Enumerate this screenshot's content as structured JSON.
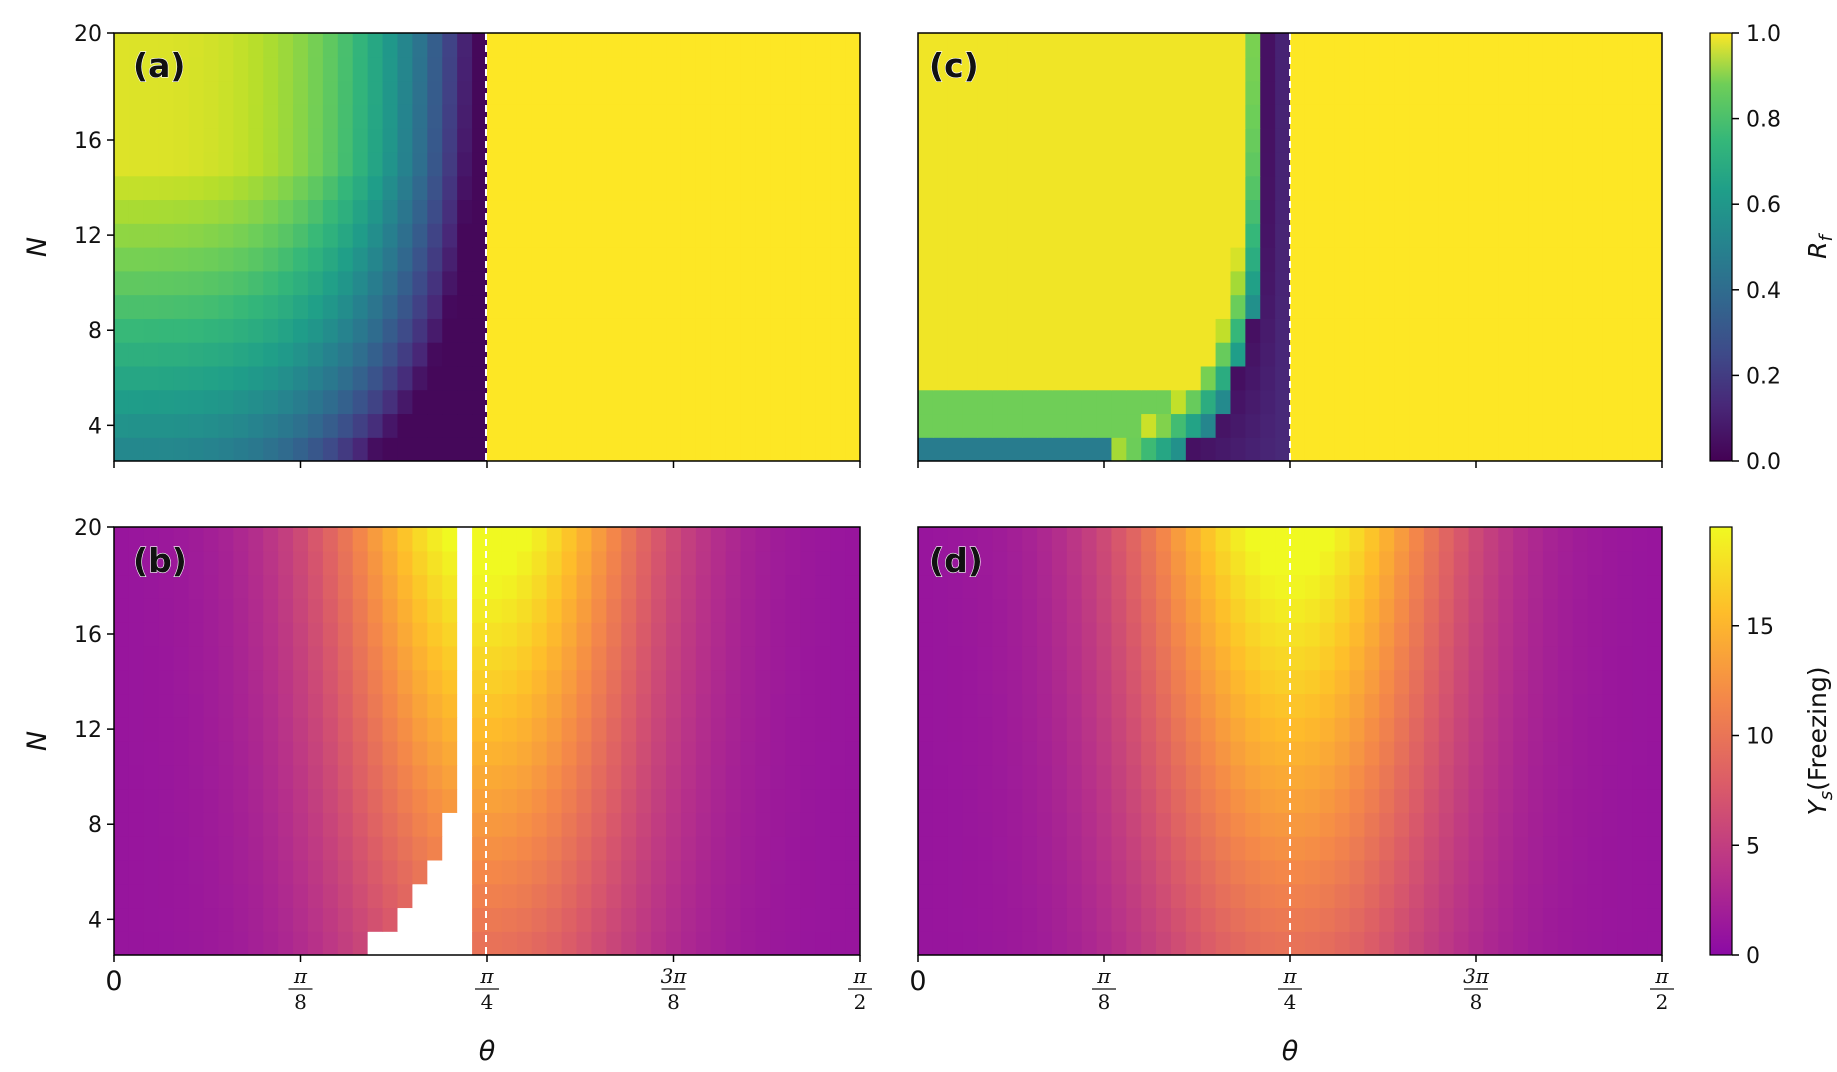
{
  "chart_data": [
    {
      "id": "a",
      "type": "heatmap",
      "panel_label": "(a)",
      "colormap": "viridis",
      "quantity": "R_f",
      "xlabel": "",
      "ylabel": "N",
      "xlim": [
        0,
        1.5708
      ],
      "ylim": [
        3,
        20
      ],
      "y_ticks": [
        4,
        8,
        12,
        16,
        20
      ],
      "x_ticks": [
        0,
        0.3927,
        0.7854,
        1.1781,
        1.5708
      ],
      "dashed_line_x": 0.7854,
      "description": "R_f about 0.5-0.95 at small theta, falling to ~0 just below theta=pi/4 (dark band), then 1.0 for theta > pi/4"
    },
    {
      "id": "b",
      "type": "heatmap",
      "panel_label": "(b)",
      "colormap": "plasma",
      "quantity": "Y_s(Freezing)",
      "xlabel": "θ",
      "ylabel": "N",
      "xlim": [
        0,
        1.5708
      ],
      "ylim": [
        3,
        20
      ],
      "y_ticks": [
        4,
        8,
        12,
        16,
        20
      ],
      "x_ticks": [
        0,
        0.3927,
        0.7854,
        1.1781,
        1.5708
      ],
      "dashed_line_x": 0.7854,
      "white_region": "undefined values where R_f = 0, narrow near theta=pi/4 at large N, widening toward small N",
      "description": "Y_s peaks (~19) near theta=pi/4 at N=20, decreasing away from pi/4 and with smaller N"
    },
    {
      "id": "c",
      "type": "heatmap",
      "panel_label": "(c)",
      "colormap": "viridis",
      "quantity": "R_f",
      "xlabel": "",
      "ylabel": "",
      "xlim": [
        0,
        1.5708
      ],
      "ylim": [
        3,
        20
      ],
      "x_ticks": [
        0,
        0.3927,
        0.7854,
        1.1781,
        1.5708
      ],
      "dashed_line_x": 0.7854,
      "description": "R_f about 1.0 almost everywhere, with a thin dark band just left of theta=pi/4 and reduced values at N=3-6"
    },
    {
      "id": "d",
      "type": "heatmap",
      "panel_label": "(d)",
      "colormap": "plasma",
      "quantity": "Y_s(Freezing)",
      "xlabel": "θ",
      "ylabel": "",
      "xlim": [
        0,
        1.5708
      ],
      "ylim": [
        3,
        20
      ],
      "x_ticks": [
        0,
        0.3927,
        0.7854,
        1.1781,
        1.5708
      ],
      "dashed_line_x": 0.7854,
      "description": "Smooth Y_s field peaking near theta=pi/4 at N=20"
    }
  ],
  "y_tick_labels": [
    "4",
    "8",
    "12",
    "16",
    "20"
  ],
  "x_tick_labels": {
    "zero": "0",
    "pi8": {
      "num": "π",
      "den": "8"
    },
    "pi4": {
      "num": "π",
      "den": "4"
    },
    "pi38": {
      "num": "3π",
      "den": "8"
    },
    "pi2": {
      "num": "π",
      "den": "2"
    }
  },
  "axis_labels": {
    "x": "θ",
    "y": "N"
  },
  "colorbars": [
    {
      "id": "rf",
      "label": "R_f",
      "label_main": "R",
      "label_sub": "f",
      "colormap": "viridis",
      "range": [
        0.0,
        1.0
      ],
      "ticks": [
        "0.0",
        "0.2",
        "0.4",
        "0.6",
        "0.8",
        "1.0"
      ]
    },
    {
      "id": "ys",
      "label": "Y_s(Freezing)",
      "label_main": "Y",
      "label_sub": "s",
      "label_rest": "(Freezing)",
      "colormap": "plasma",
      "range": [
        0,
        19.5
      ],
      "ticks": [
        "0",
        "5",
        "10",
        "15"
      ],
      "tick_values": [
        0,
        5,
        10,
        15
      ]
    }
  ]
}
